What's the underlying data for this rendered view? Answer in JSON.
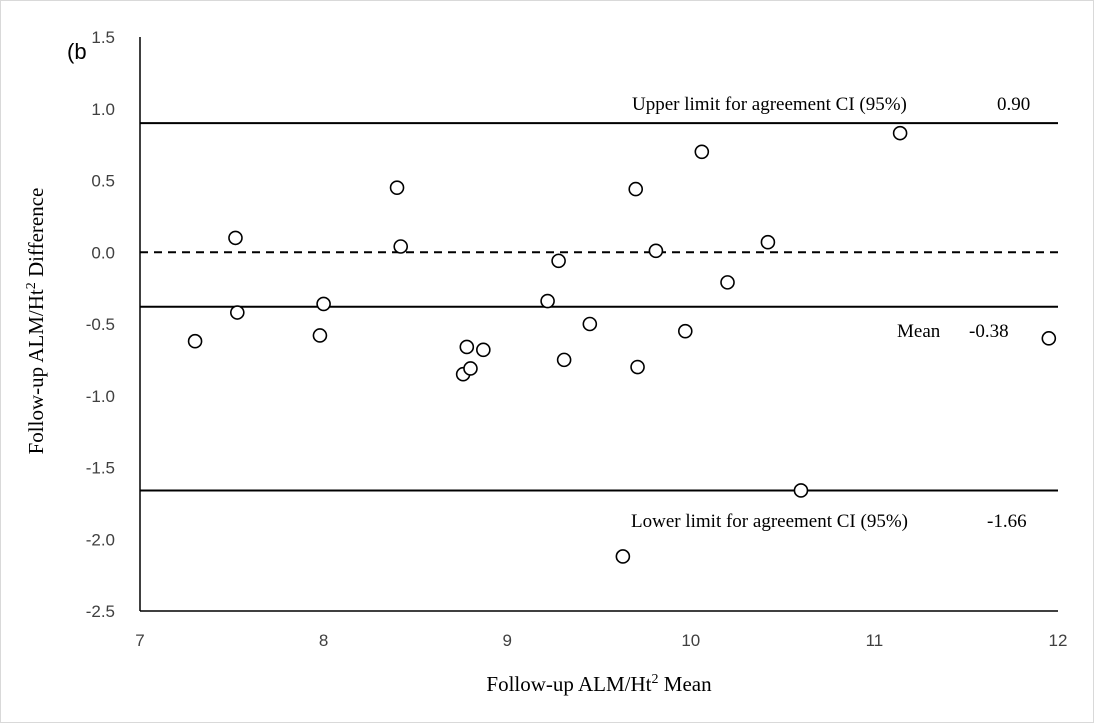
{
  "panel_label": "(b",
  "chart_data": {
    "type": "scatter",
    "xlabel_main": "Follow-up ALM/Ht",
    "xlabel_sup": "2",
    "xlabel_tail": " Mean",
    "ylabel_main": "Follow-up ALM/Ht",
    "ylabel_sup": "2",
    "ylabel_tail": " Difference",
    "xlim": [
      7,
      12
    ],
    "ylim": [
      -2.5,
      1.5
    ],
    "xticks": [
      "7",
      "8",
      "9",
      "10",
      "11",
      "12"
    ],
    "yticks": [
      "1.5",
      "1.0",
      "0.5",
      "0.0",
      "-0.5",
      "-1.0",
      "-1.5",
      "-2.0",
      "-2.5"
    ],
    "reference_lines": {
      "upper": {
        "value": 0.9,
        "label": "Upper limit for agreement CI (95%)",
        "value_label": "0.90"
      },
      "mean": {
        "value": -0.38,
        "label": "Mean",
        "value_label": "-0.38"
      },
      "lower": {
        "value": -1.66,
        "label": "Lower limit for agreement CI (95%)",
        "value_label": "-1.66"
      },
      "zero": {
        "value": 0.0,
        "style": "dashed"
      }
    },
    "points": [
      [
        7.3,
        -0.62
      ],
      [
        7.52,
        0.1
      ],
      [
        7.53,
        -0.42
      ],
      [
        7.98,
        -0.58
      ],
      [
        8.0,
        -0.36
      ],
      [
        8.4,
        0.45
      ],
      [
        8.42,
        0.04
      ],
      [
        8.76,
        -0.85
      ],
      [
        8.78,
        -0.66
      ],
      [
        8.8,
        -0.81
      ],
      [
        8.87,
        -0.68
      ],
      [
        9.22,
        -0.34
      ],
      [
        9.28,
        -0.06
      ],
      [
        9.31,
        -0.75
      ],
      [
        9.45,
        -0.5
      ],
      [
        9.63,
        -2.12
      ],
      [
        9.7,
        0.44
      ],
      [
        9.71,
        -0.8
      ],
      [
        9.81,
        0.01
      ],
      [
        9.97,
        -0.55
      ],
      [
        10.06,
        0.7
      ],
      [
        10.2,
        -0.21
      ],
      [
        10.42,
        0.07
      ],
      [
        10.6,
        -1.66
      ],
      [
        11.14,
        0.83
      ],
      [
        11.95,
        -0.6
      ]
    ]
  }
}
